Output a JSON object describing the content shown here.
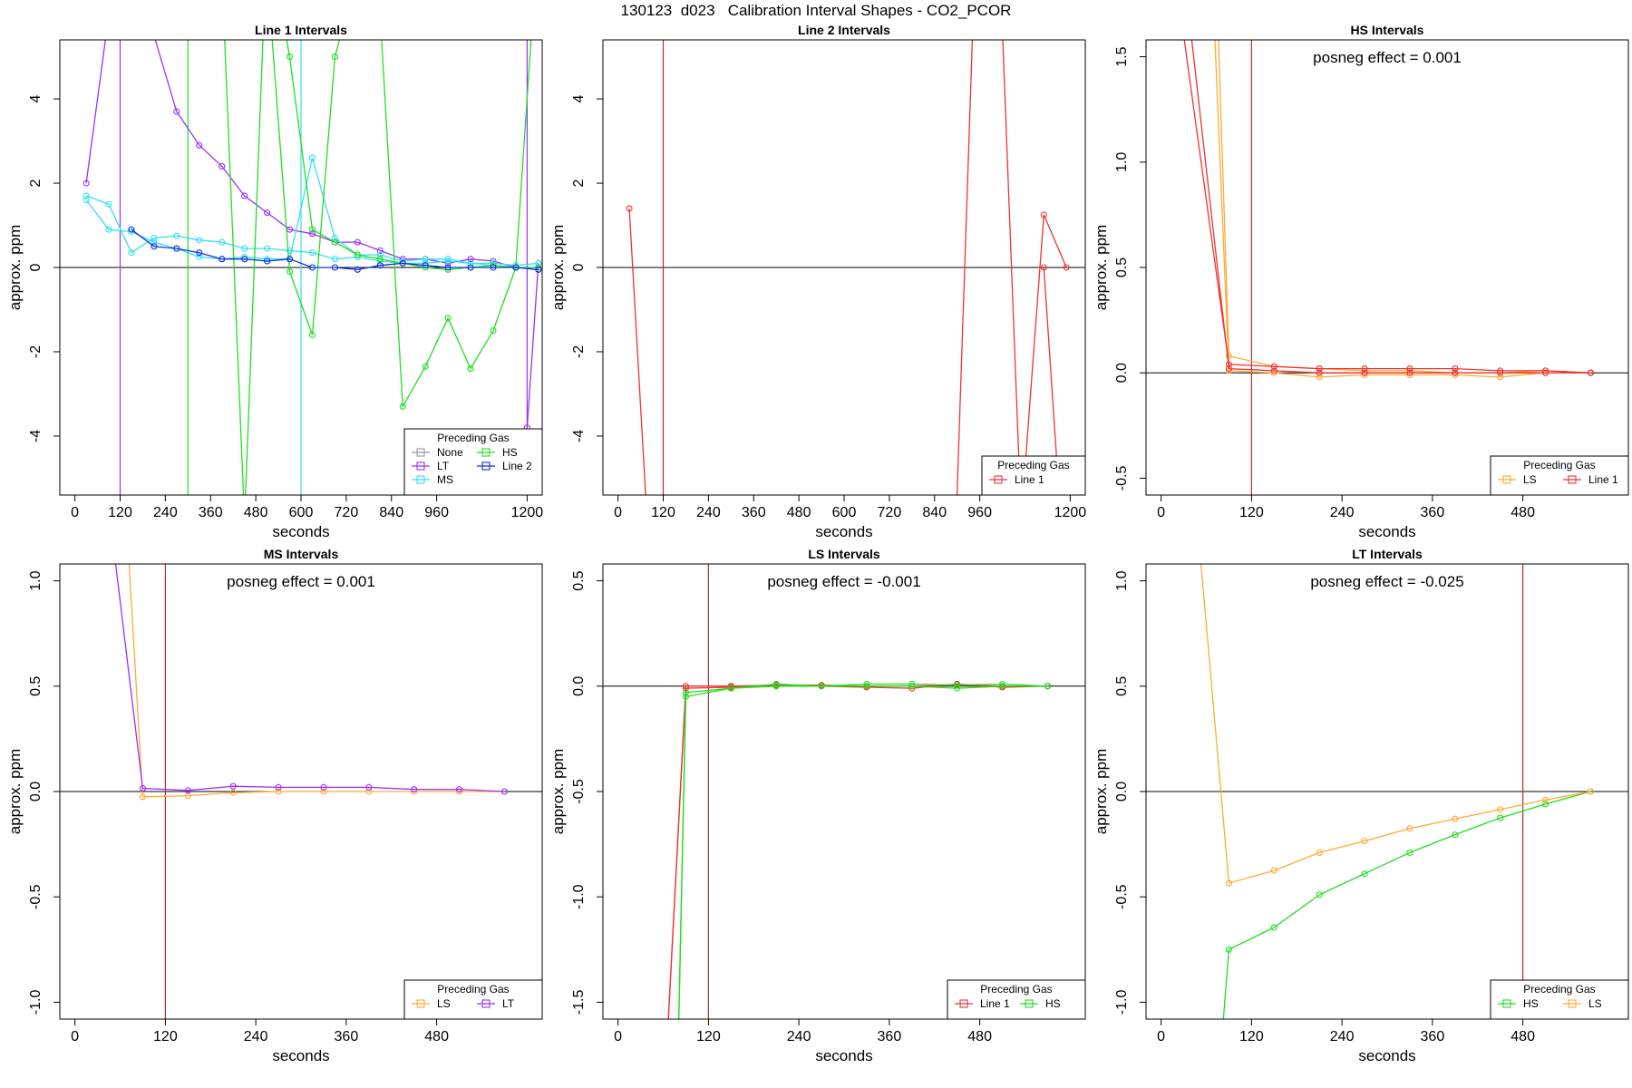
{
  "figure": {
    "title": "130123  d023   Calibration Interval Shapes - CO2_PCOR"
  },
  "chart_data": [
    {
      "type": "line",
      "title": "Line 1 Intervals",
      "xlabel": "seconds",
      "ylabel": "approx. ppm",
      "xlim": [
        -40,
        1240
      ],
      "ylim": [
        -5.4,
        5.4
      ],
      "xticks": [
        0,
        120,
        240,
        360,
        480,
        600,
        720,
        840,
        960,
        1200
      ],
      "yticks": [
        -4,
        -2,
        0,
        2,
        4
      ],
      "vlines": [
        {
          "x": 120,
          "color": "#9b30ff"
        },
        {
          "x": 300,
          "color": "#22dd22"
        },
        {
          "x": 600,
          "color": "#33e0ee"
        },
        {
          "x": 1200,
          "color": "#9b30ff"
        }
      ],
      "annotation": "",
      "legend": {
        "title": "Preceding Gas",
        "position": "bottom-right",
        "columns": 2,
        "entries": [
          {
            "name": "None",
            "color": "#999999"
          },
          {
            "name": "LT",
            "color": "#9b30ff"
          },
          {
            "name": "MS",
            "color": "#33e0ee"
          },
          {
            "name": "HS",
            "color": "#22dd22"
          },
          {
            "name": "Line 2",
            "color": "#1030dd"
          }
        ]
      },
      "series": [
        {
          "name": "LT",
          "color": "#9b30ff",
          "x": [
            30,
            90,
            150,
            210,
            270,
            330,
            390,
            450,
            510,
            570,
            630,
            690,
            750,
            810,
            870,
            930,
            990,
            1050,
            1110,
            1170,
            1230
          ],
          "y": [
            2.0,
            6.0,
            7.0,
            5.5,
            3.7,
            2.9,
            2.4,
            1.7,
            1.3,
            0.9,
            0.8,
            0.6,
            0.6,
            0.4,
            0.2,
            0.2,
            0.1,
            0.2,
            0.15,
            0.0,
            -0.05
          ]
        },
        {
          "name": "LT",
          "color": "#9b30ff",
          "x": [
            1200,
            1230
          ],
          "y": [
            -3.8,
            0.1
          ]
        },
        {
          "name": "MS",
          "color": "#33e0ee",
          "x": [
            30,
            90,
            150,
            210,
            270,
            330,
            390,
            450,
            510,
            570,
            630,
            690,
            750,
            810,
            870,
            930,
            990,
            1050,
            1110,
            1170,
            1230
          ],
          "y": [
            1.7,
            1.5,
            0.35,
            0.7,
            0.75,
            0.65,
            0.6,
            0.45,
            0.45,
            0.4,
            0.35,
            0.2,
            0.25,
            0.15,
            0.1,
            0.1,
            0.15,
            0.1,
            0.1,
            0.05,
            0.1
          ]
        },
        {
          "name": "MS",
          "color": "#33e0ee",
          "x": [
            30,
            90,
            150,
            210,
            270,
            330,
            390,
            450,
            510,
            570,
            630,
            690,
            750,
            810,
            870,
            930,
            990,
            1050,
            1110,
            1170,
            1230
          ],
          "y": [
            1.6,
            0.9,
            0.85,
            0.6,
            0.45,
            0.25,
            0.2,
            0.25,
            0.2,
            0.2,
            2.6,
            0.7,
            0.3,
            0.3,
            0.15,
            0.2,
            0.2,
            0.1,
            0.05,
            0.0,
            0.0
          ]
        },
        {
          "name": "HS",
          "color": "#22dd22",
          "x": [
            330,
            390,
            450,
            510,
            570,
            630,
            690,
            750,
            810,
            870,
            930,
            990,
            1050,
            1110,
            1170,
            1230
          ],
          "y": [
            6.0,
            7.0,
            -6.0,
            8.0,
            5.0,
            0.9,
            0.6,
            0.3,
            0.2,
            0.1,
            0.0,
            -0.05,
            0.0,
            0.05,
            0.0,
            0.0
          ]
        },
        {
          "name": "HS",
          "color": "#22dd22",
          "x": [
            510,
            570,
            630,
            690,
            750,
            810,
            870,
            930,
            990,
            1050,
            1110,
            1170,
            1230
          ],
          "y": [
            7.0,
            -0.1,
            -1.6,
            5.0,
            7.0,
            6.0,
            -3.3,
            -2.35,
            -1.2,
            -2.4,
            -1.5,
            0.0,
            8.0
          ]
        },
        {
          "name": "Line 2",
          "color": "#1030dd",
          "x": [
            150,
            210,
            270,
            330,
            390,
            450,
            510,
            570,
            630,
            690,
            750,
            810,
            870,
            930,
            990,
            1050,
            1110,
            1170,
            1230
          ],
          "y": [
            0.9,
            0.5,
            0.45,
            0.35,
            0.2,
            0.2,
            0.15,
            0.2,
            0.0,
            0.0,
            -0.05,
            0.05,
            0.1,
            0.05,
            0.0,
            0.0,
            0.0,
            0.0,
            -0.05
          ]
        }
      ]
    },
    {
      "type": "line",
      "title": "Line 2 Intervals",
      "xlabel": "seconds",
      "ylabel": "approx. ppm",
      "xlim": [
        -40,
        1240
      ],
      "ylim": [
        -5.4,
        5.4
      ],
      "xticks": [
        0,
        120,
        240,
        360,
        480,
        600,
        720,
        840,
        960,
        1200
      ],
      "yticks": [
        -4,
        -2,
        0,
        2,
        4
      ],
      "vlines": [
        {
          "x": 120,
          "color": "#b03030"
        }
      ],
      "annotation": "",
      "legend": {
        "title": "Preceding Gas",
        "position": "bottom-right",
        "columns": 1,
        "entries": [
          {
            "name": "Line 1",
            "color": "#ee3333"
          }
        ]
      },
      "series": [
        {
          "name": "Line 1",
          "color": "#ee3333",
          "x": [
            30,
            90
          ],
          "y": [
            1.4,
            -8.0
          ]
        },
        {
          "name": "Line 1",
          "color": "#ee3333",
          "x": [
            890,
            950
          ],
          "y": [
            -8.0,
            8.0
          ]
        },
        {
          "name": "Line 1",
          "color": "#ee3333",
          "x": [
            1010,
            1070,
            1130,
            1190
          ],
          "y": [
            8.0,
            -6.0,
            1.25,
            0.0
          ]
        },
        {
          "name": "Line 1",
          "color": "#ee3333",
          "x": [
            1130,
            1190
          ],
          "y": [
            0.0,
            -8.0
          ]
        }
      ]
    },
    {
      "type": "line",
      "title": "HS Intervals",
      "xlabel": "seconds",
      "ylabel": "approx. ppm",
      "xlim": [
        -20,
        620
      ],
      "ylim": [
        -0.58,
        1.58
      ],
      "xticks": [
        0,
        120,
        240,
        360,
        480
      ],
      "yticks": [
        -0.5,
        0.0,
        0.5,
        1.0,
        1.5
      ],
      "vlines": [
        {
          "x": 120,
          "color": "#b03030"
        }
      ],
      "annotation": "posneg effect = 0.001",
      "legend": {
        "title": "Preceding Gas",
        "position": "bottom-right",
        "columns": 2,
        "entries": [
          {
            "name": "LS",
            "color": "#ffaa33"
          },
          {
            "name": "Line 1",
            "color": "#ee3333"
          }
        ]
      },
      "series": [
        {
          "name": "LS",
          "color": "#ffaa33",
          "x": [
            75,
            90,
            150,
            210,
            270,
            330,
            390,
            450,
            510,
            570
          ],
          "y": [
            1.7,
            0.08,
            0.03,
            0.02,
            0.01,
            0.01,
            0.0,
            0.0,
            0.01,
            0.0
          ]
        },
        {
          "name": "LS",
          "color": "#ffaa33",
          "x": [
            70,
            90,
            150,
            210,
            270,
            330,
            390,
            450,
            510,
            570
          ],
          "y": [
            1.7,
            0.01,
            0.0,
            -0.02,
            -0.01,
            -0.01,
            -0.01,
            -0.02,
            0.0,
            0.0
          ]
        },
        {
          "name": "Line 1",
          "color": "#ee3333",
          "x": [
            30,
            90,
            150,
            210,
            270,
            330,
            390,
            450,
            510,
            570
          ],
          "y": [
            1.6,
            0.04,
            0.03,
            0.02,
            0.02,
            0.02,
            0.02,
            0.01,
            0.01,
            0.0
          ]
        },
        {
          "name": "Line 1",
          "color": "#ee3333",
          "x": [
            40,
            90,
            150,
            210,
            270,
            330,
            390,
            450,
            510,
            570
          ],
          "y": [
            1.6,
            0.02,
            0.01,
            0.0,
            0.0,
            0.0,
            0.0,
            0.0,
            0.0,
            0.0
          ]
        }
      ]
    },
    {
      "type": "line",
      "title": "MS Intervals",
      "xlabel": "seconds",
      "ylabel": "approx. ppm",
      "xlim": [
        -20,
        620
      ],
      "ylim": [
        -1.08,
        1.08
      ],
      "xticks": [
        0,
        120,
        240,
        360,
        480
      ],
      "yticks": [
        -1.0,
        -0.5,
        0.0,
        0.5,
        1.0
      ],
      "vlines": [
        {
          "x": 120,
          "color": "#b03030"
        }
      ],
      "annotation": "posneg effect = 0.001",
      "legend": {
        "title": "Preceding Gas",
        "position": "bottom-right",
        "columns": 2,
        "entries": [
          {
            "name": "LS",
            "color": "#ffaa33"
          },
          {
            "name": "LT",
            "color": "#9b30ff"
          }
        ]
      },
      "series": [
        {
          "name": "LS",
          "color": "#ffaa33",
          "x": [
            70,
            90,
            150,
            210,
            270,
            330,
            390,
            450,
            510,
            570
          ],
          "y": [
            1.2,
            -0.025,
            -0.02,
            -0.005,
            0.0,
            0.0,
            0.0,
            0.0,
            0.0,
            0.0
          ]
        },
        {
          "name": "LT",
          "color": "#9b30ff",
          "x": [
            50,
            90,
            150,
            210,
            270,
            330,
            390,
            450,
            510,
            570
          ],
          "y": [
            1.2,
            0.015,
            0.005,
            0.025,
            0.02,
            0.02,
            0.02,
            0.01,
            0.01,
            0.0
          ]
        }
      ]
    },
    {
      "type": "line",
      "title": "LS Intervals",
      "xlabel": "seconds",
      "ylabel": "approx. ppm",
      "xlim": [
        -20,
        620
      ],
      "ylim": [
        -1.58,
        0.58
      ],
      "xticks": [
        0,
        120,
        240,
        360,
        480
      ],
      "yticks": [
        -1.5,
        -1.0,
        -0.5,
        0.0,
        0.5
      ],
      "vlines": [
        {
          "x": 120,
          "color": "#b03030"
        }
      ],
      "annotation": "posneg effect = -0.001",
      "legend": {
        "title": "Preceding Gas",
        "position": "bottom-right",
        "columns": 2,
        "entries": [
          {
            "name": "Line 1",
            "color": "#ee3333"
          },
          {
            "name": "HS",
            "color": "#22dd22"
          }
        ]
      },
      "series": [
        {
          "name": "Line 1",
          "color": "#ee3333",
          "x": [
            65,
            90,
            150,
            210,
            270,
            330,
            390,
            450,
            510,
            570
          ],
          "y": [
            -1.7,
            0.0,
            0.0,
            0.005,
            0.005,
            0.0,
            0.0,
            0.005,
            0.0,
            0.0
          ]
        },
        {
          "name": "Line 1",
          "color": "#ee3333",
          "x": [
            65,
            90,
            150,
            210,
            270,
            330,
            390,
            450,
            510,
            570
          ],
          "y": [
            -1.7,
            -0.01,
            -0.005,
            0.0,
            0.0,
            -0.005,
            -0.01,
            0.01,
            -0.005,
            0.0
          ]
        },
        {
          "name": "HS",
          "color": "#22dd22",
          "x": [
            80,
            90,
            150,
            210,
            270,
            330,
            390,
            450,
            510,
            570
          ],
          "y": [
            -1.7,
            -0.05,
            -0.01,
            0.0,
            0.0,
            0.0,
            0.0,
            -0.01,
            0.0,
            0.0
          ]
        },
        {
          "name": "HS",
          "color": "#22dd22",
          "x": [
            80,
            90,
            150,
            210,
            270,
            330,
            390,
            450,
            510,
            570
          ],
          "y": [
            -1.7,
            -0.03,
            -0.01,
            0.01,
            0.0,
            0.01,
            0.01,
            0.005,
            0.01,
            0.0
          ]
        }
      ]
    },
    {
      "type": "line",
      "title": "LT Intervals",
      "xlabel": "seconds",
      "ylabel": "approx. ppm",
      "xlim": [
        -20,
        620
      ],
      "ylim": [
        -1.08,
        1.08
      ],
      "xticks": [
        0,
        120,
        240,
        360,
        480
      ],
      "yticks": [
        -1.0,
        -0.5,
        0.0,
        0.5,
        1.0
      ],
      "vlines": [
        {
          "x": 480,
          "color": "#b03030"
        }
      ],
      "annotation": "posneg effect = -0.025",
      "legend": {
        "title": "Preceding Gas",
        "position": "bottom-right",
        "columns": 2,
        "entries": [
          {
            "name": "HS",
            "color": "#22dd22"
          },
          {
            "name": "LS",
            "color": "#ffaa33"
          }
        ]
      },
      "series": [
        {
          "name": "HS",
          "color": "#22dd22",
          "x": [
            80,
            90,
            150,
            210,
            270,
            330,
            390,
            450,
            510,
            570
          ],
          "y": [
            -1.2,
            -0.75,
            -0.645,
            -0.49,
            -0.39,
            -0.29,
            -0.205,
            -0.125,
            -0.06,
            0.0
          ]
        },
        {
          "name": "LS",
          "color": "#ffaa33",
          "x": [
            50,
            90,
            150,
            210,
            270,
            330,
            390,
            450,
            510,
            570
          ],
          "y": [
            1.2,
            -0.435,
            -0.375,
            -0.29,
            -0.235,
            -0.175,
            -0.13,
            -0.085,
            -0.04,
            0.0
          ]
        }
      ]
    }
  ]
}
